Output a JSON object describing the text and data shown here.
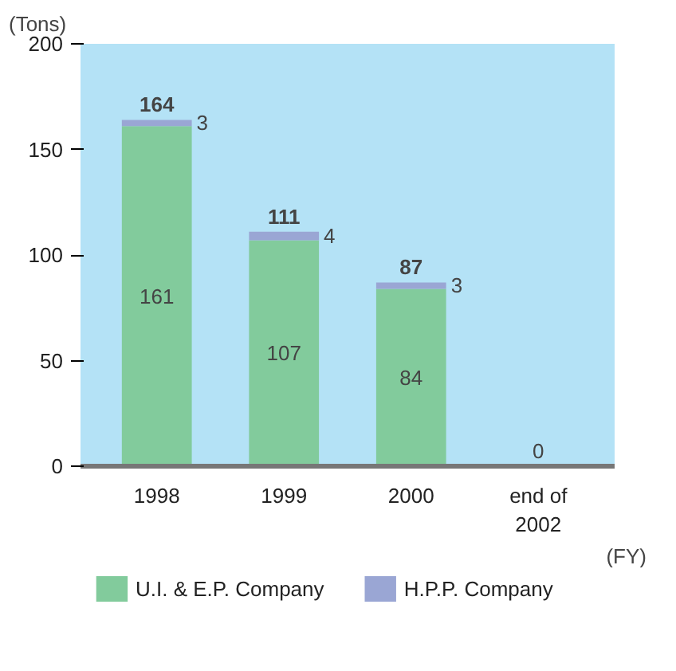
{
  "chart_data": {
    "type": "bar",
    "stacked": true,
    "categories": [
      "1998",
      "1999",
      "2000",
      "end of\n2002"
    ],
    "xlabel": "(FY)",
    "ylabel": "(Tons)",
    "series": [
      {
        "name": "U.I. & E.P. Company",
        "color": "#82cb9c",
        "values": [
          161,
          107,
          84,
          0
        ],
        "value_labels": [
          "161",
          "107",
          "84",
          null
        ]
      },
      {
        "name": "H.P.P. Company",
        "color": "#9aa6d4",
        "values": [
          3,
          4,
          3,
          0
        ],
        "value_labels": [
          "3",
          "4",
          "3",
          null
        ]
      }
    ],
    "totals": [
      "164",
      "111",
      "87",
      "0"
    ],
    "ylim": [
      0,
      200
    ],
    "yticks": [
      0,
      50,
      100,
      150,
      200
    ],
    "grid": false,
    "legend": "bottom"
  }
}
